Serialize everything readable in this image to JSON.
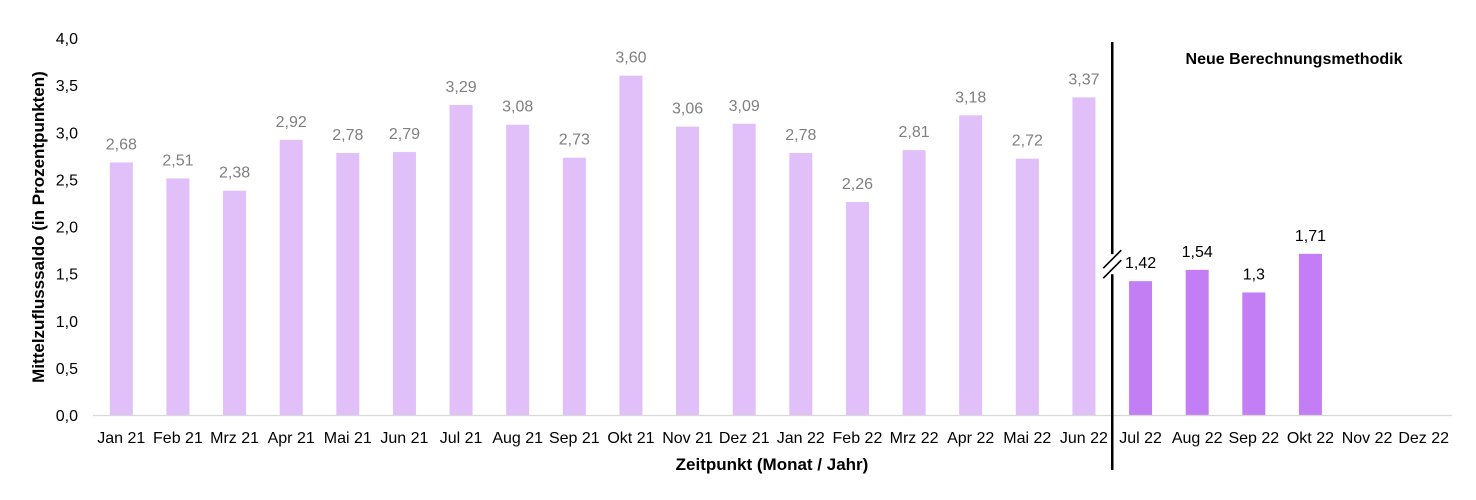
{
  "chart_data": {
    "type": "bar",
    "title": "",
    "xlabel": "Zeitpunkt (Monat / Jahr)",
    "ylabel": "Mittelzuflusssaldo (in Prozentpunkten)",
    "ylim": [
      0,
      4
    ],
    "yticks": [
      "0,0",
      "0,5",
      "1,0",
      "1,5",
      "2,0",
      "2,5",
      "3,0",
      "3,5",
      "4,0"
    ],
    "categories": [
      "Jan 21",
      "Feb 21",
      "Mrz 21",
      "Apr 21",
      "Mai 21",
      "Jun 21",
      "Jul 21",
      "Aug 21",
      "Sep 21",
      "Okt 21",
      "Nov 21",
      "Dez 21",
      "Jan 22",
      "Feb 22",
      "Mrz 22",
      "Apr 22",
      "Mai 22",
      "Jun 22",
      "Jul 22",
      "Aug 22",
      "Sep 22",
      "Okt 22",
      "Nov 22",
      "Dez 22"
    ],
    "values": [
      2.68,
      2.51,
      2.38,
      2.92,
      2.78,
      2.79,
      3.29,
      3.08,
      2.73,
      3.6,
      3.06,
      3.09,
      2.78,
      2.26,
      2.81,
      3.18,
      2.72,
      3.37,
      1.42,
      1.54,
      1.3,
      1.71,
      null,
      null
    ],
    "data_labels": [
      "2,68",
      "2,51",
      "2,38",
      "2,92",
      "2,78",
      "2,79",
      "3,29",
      "3,08",
      "2,73",
      "3,60",
      "3,06",
      "3,09",
      "2,78",
      "2,26",
      "2,81",
      "3,18",
      "2,72",
      "3,37",
      "1,42",
      "1,54",
      "1,3",
      "1,71",
      "",
      ""
    ],
    "method_break_after": "Jun 22",
    "annotation": "Neue Berechnungsmethodik",
    "colors": {
      "old_method": "#e1bff9",
      "new_method": "#c47ef5",
      "old_label": "#7f7f7f",
      "new_label": "#000000"
    },
    "grid": false,
    "legend": "none"
  }
}
